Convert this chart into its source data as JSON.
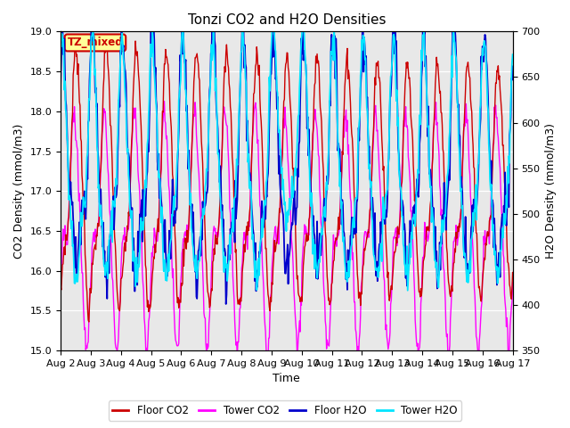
{
  "title": "Tonzi CO2 and H2O Densities",
  "xlabel": "Time",
  "ylabel_left": "CO2 Density (mmol/m3)",
  "ylabel_right": "H2O Density (mmol/m3)",
  "ylim_left": [
    15.0,
    19.0
  ],
  "ylim_right": [
    350,
    700
  ],
  "annotation": "TZ_mixed",
  "annotation_color": "#cc0000",
  "annotation_bg": "#ffff99",
  "bg_color": "#e8e8e8",
  "legend": [
    "Floor CO2",
    "Tower CO2",
    "Floor H2O",
    "Tower H2O"
  ],
  "legend_colors": [
    "#cc0000",
    "#ff00ff",
    "#0000cc",
    "#00e5ff"
  ],
  "xticklabels": [
    "Aug 2",
    "Aug 3",
    "Aug 4",
    "Aug 5",
    "Aug 6",
    "Aug 7",
    "Aug 8",
    "Aug 9",
    "Aug 10",
    "Aug 11",
    "Aug 12",
    "Aug 13",
    "Aug 14",
    "Aug 15",
    "Aug 16",
    "Aug 17"
  ],
  "n_days": 15,
  "n_points": 720,
  "figsize": [
    6.4,
    4.8
  ],
  "dpi": 100
}
